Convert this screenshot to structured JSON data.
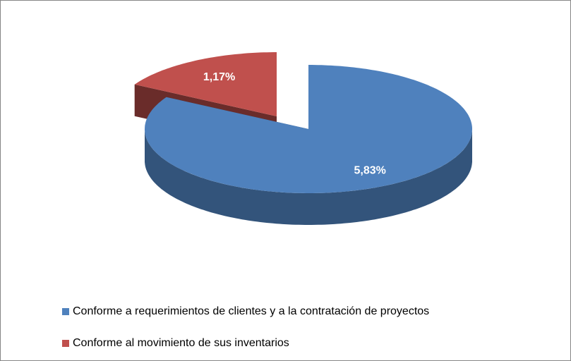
{
  "chart_data": {
    "type": "pie",
    "categories": [
      "Conforme a requerimientos de clientes y a la contratación de proyectos",
      "Conforme al movimiento de sus inventarios"
    ],
    "values": [
      5.83,
      1.17
    ],
    "value_labels": [
      "5,83%",
      "1,17%"
    ],
    "colors": [
      "#4f81bd",
      "#c0504d"
    ],
    "explode": [
      false,
      true
    ],
    "legend": "bottom"
  }
}
